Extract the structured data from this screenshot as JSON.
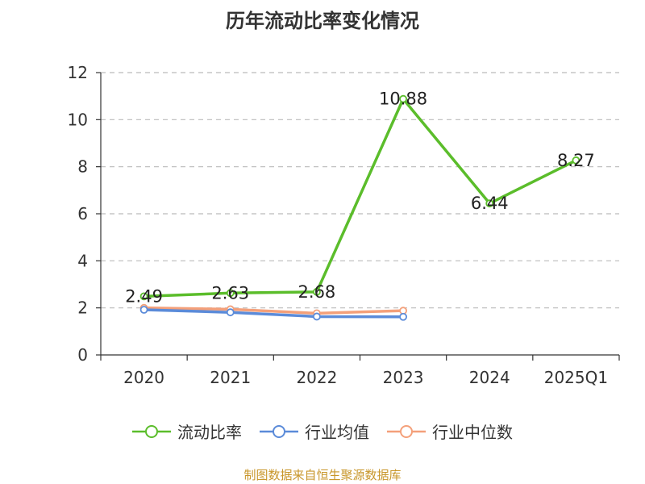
{
  "title": "历年流动比率变化情况",
  "footer": "制图数据来自恒生聚源数据库",
  "colors": {
    "axis": "#333333",
    "grid": "#bbbbbb",
    "text": "#333333"
  },
  "chart_data": {
    "type": "line",
    "categories": [
      "2020",
      "2021",
      "2022",
      "2023",
      "2024",
      "2025Q1"
    ],
    "ylim": [
      0,
      12
    ],
    "yticks": [
      0,
      2,
      4,
      6,
      8,
      10,
      12
    ],
    "grid": true,
    "legend_position": "bottom",
    "series": [
      {
        "name": "流动比率",
        "color": "#5bbd2b",
        "values": [
          2.49,
          2.63,
          2.68,
          10.88,
          6.44,
          8.27
        ],
        "labels": [
          "2.49",
          "2.63",
          "2.68",
          "10.88",
          "6.44",
          "8.27"
        ]
      },
      {
        "name": "行业均值",
        "color": "#5b8bd9",
        "values": [
          1.92,
          1.81,
          1.63,
          1.62,
          null,
          null
        ]
      },
      {
        "name": "行业中位数",
        "color": "#f4a07a",
        "values": [
          2.0,
          1.94,
          1.77,
          1.88,
          null,
          null
        ]
      }
    ]
  }
}
